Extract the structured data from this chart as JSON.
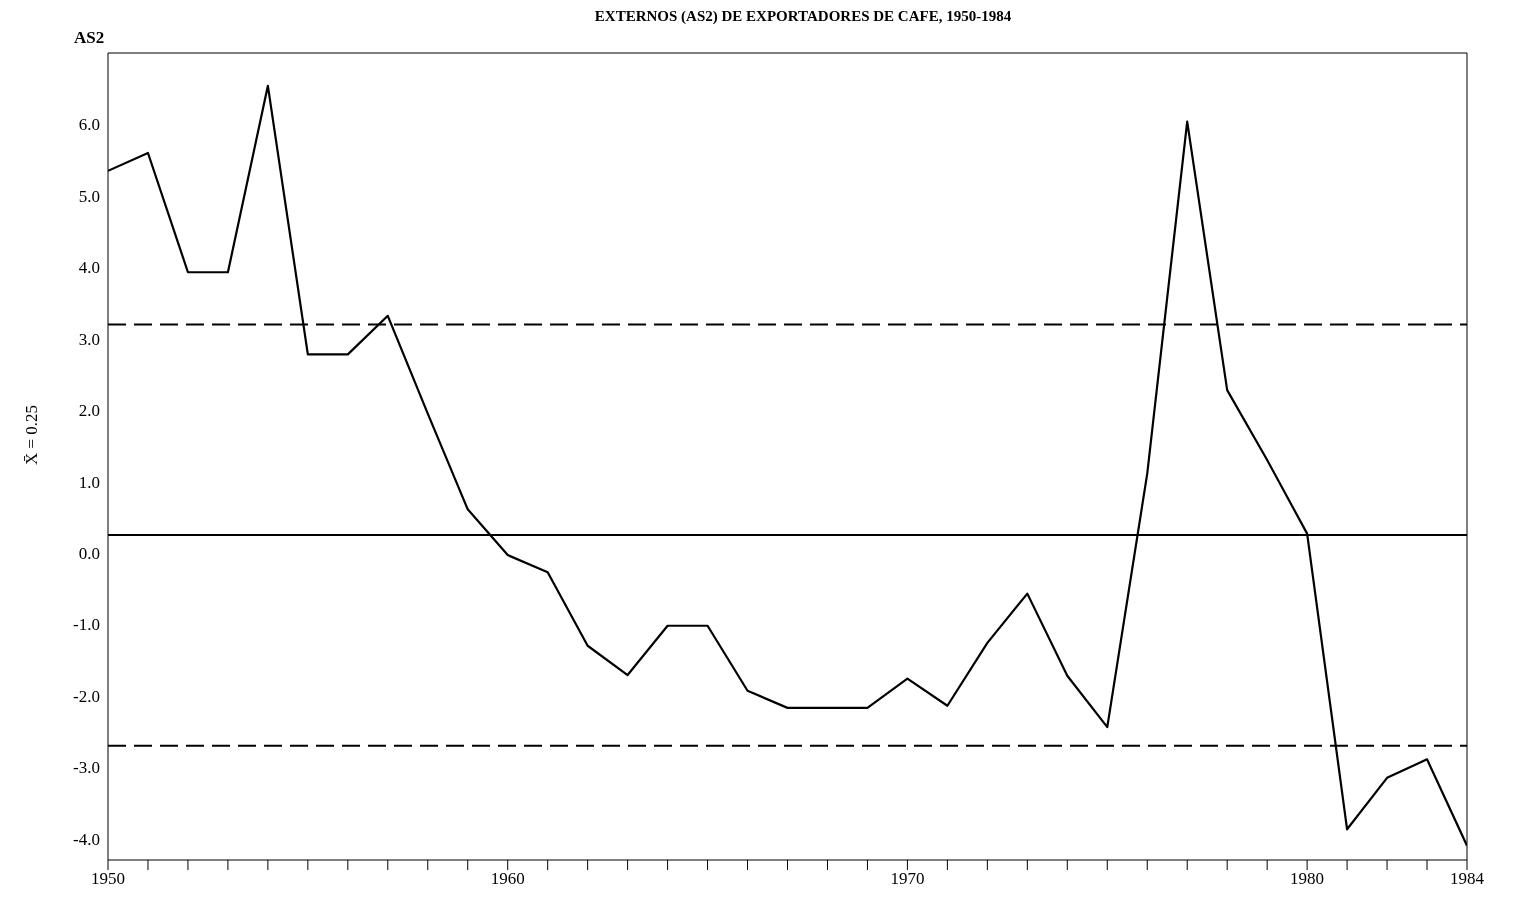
{
  "chart_data": {
    "type": "line",
    "title": "EXTERNOS (AS2) DE EXPORTADORES DE CAFE, 1950-1984",
    "ylabel": "AS2",
    "x": [
      1950,
      1951,
      1952,
      1953,
      1954,
      1955,
      1956,
      1957,
      1958,
      1959,
      1960,
      1961,
      1962,
      1963,
      1964,
      1965,
      1966,
      1967,
      1968,
      1969,
      1970,
      1971,
      1972,
      1973,
      1974,
      1975,
      1976,
      1977,
      1978,
      1979,
      1980,
      1981,
      1982,
      1983,
      1984
    ],
    "series": [
      {
        "color": "#000000",
        "values": [
          5.35,
          5.6,
          3.93,
          3.93,
          6.54,
          2.78,
          2.78,
          3.32,
          1.95,
          0.61,
          -0.03,
          -0.27,
          -1.3,
          -1.71,
          -1.02,
          -1.02,
          -1.93,
          -2.17,
          -2.17,
          -2.17,
          -1.76,
          -2.14,
          -1.26,
          -0.57,
          -1.72,
          -2.44,
          1.11,
          6.04,
          2.28,
          1.3,
          0.27,
          -3.87,
          -3.15,
          -2.89,
          -4.1
        ]
      }
    ],
    "xlim": [
      1950,
      1984
    ],
    "xticks": [
      1950,
      {
        "value": 1951,
        "label": null
      },
      {
        "value": 1952,
        "label": null
      },
      {
        "value": 1953,
        "label": null
      },
      {
        "value": 1954,
        "label": null
      },
      {
        "value": 1955,
        "label": null
      },
      {
        "value": 1956,
        "label": null
      },
      {
        "value": 1957,
        "label": null
      },
      {
        "value": 1958,
        "label": null
      },
      {
        "value": 1959,
        "label": null
      },
      1960,
      {
        "value": 1961,
        "label": null
      },
      {
        "value": 1962,
        "label": null
      },
      {
        "value": 1963,
        "label": null
      },
      {
        "value": 1964,
        "label": null
      },
      {
        "value": 1965,
        "label": null
      },
      {
        "value": 1966,
        "label": null
      },
      {
        "value": 1967,
        "label": null
      },
      {
        "value": 1968,
        "label": null
      },
      {
        "value": 1969,
        "label": null
      },
      1970,
      {
        "value": 1971,
        "label": null
      },
      {
        "value": 1972,
        "label": null
      },
      {
        "value": 1973,
        "label": null
      },
      {
        "value": 1974,
        "label": null
      },
      {
        "value": 1975,
        "label": null
      },
      {
        "value": 1976,
        "label": null
      },
      {
        "value": 1977,
        "label": null
      },
      {
        "value": 1978,
        "label": null
      },
      {
        "value": 1979,
        "label": null
      },
      1980,
      {
        "value": 1981,
        "label": null
      },
      {
        "value": 1982,
        "label": null
      },
      {
        "value": 1983,
        "label": null
      },
      1984
    ],
    "ylim": [
      -4.3,
      7.0
    ],
    "yticks": [
      {
        "value": -4,
        "label": "-4.0"
      },
      {
        "value": -3,
        "label": "-3.0"
      },
      {
        "value": -2,
        "label": "-2.0"
      },
      {
        "value": -1,
        "label": "-1.0"
      },
      {
        "value": 0,
        "label": "0.0"
      },
      {
        "value": 1,
        "label": "1.0"
      },
      {
        "value": 2,
        "label": "2.0"
      },
      {
        "value": 3,
        "label": "3.0"
      },
      {
        "value": 4,
        "label": "4.0"
      },
      {
        "value": 5,
        "label": "5.0"
      },
      {
        "value": 6,
        "label": "6.0"
      }
    ],
    "ref_lines": [
      {
        "axis": "y",
        "value": 0.25,
        "label": "X̄ = 0.25",
        "color": "#000000",
        "line_style": "solid"
      },
      {
        "axis": "y",
        "value": 3.2,
        "color": "#000000",
        "line_style": "dashed"
      },
      {
        "axis": "y",
        "value": -2.7,
        "color": "#000000",
        "line_style": "dashed"
      }
    ],
    "grid": false,
    "legend": false,
    "marker": "none",
    "line_style": "solid"
  }
}
